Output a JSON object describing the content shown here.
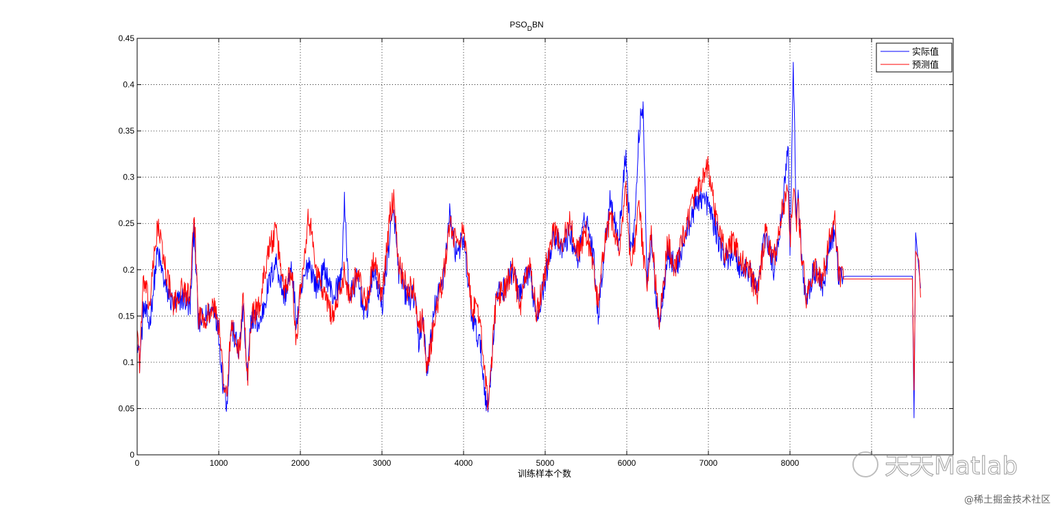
{
  "chart_data": {
    "type": "line",
    "title_main": "PSO",
    "title_sub": "D",
    "title_tail": "BN",
    "xlabel": "训练样本个数",
    "ylabel": "",
    "xlim": [
      0,
      10000
    ],
    "ylim": [
      0,
      0.45
    ],
    "xticks": [
      0,
      1000,
      2000,
      3000,
      4000,
      5000,
      6000,
      7000,
      8000,
      9000,
      10000
    ],
    "xtick_labels": [
      "0",
      "1000",
      "2000",
      "3000",
      "4000",
      "5000",
      "6000",
      "7000",
      "8000",
      "",
      ""
    ],
    "yticks": [
      0,
      0.05,
      0.1,
      0.15,
      0.2,
      0.25,
      0.3,
      0.35,
      0.4,
      0.45
    ],
    "ytick_labels": [
      "0",
      "0.05",
      "0.1",
      "0.15",
      "0.2",
      "0.25",
      "0.3",
      "0.35",
      "0.4",
      "0.45"
    ],
    "grid": true,
    "legend_position": "top-right",
    "series": [
      {
        "name": "实际值",
        "color": "#0000ff",
        "x": [
          0,
          30,
          80,
          150,
          250,
          350,
          450,
          550,
          650,
          700,
          750,
          850,
          950,
          1000,
          1050,
          1100,
          1150,
          1250,
          1300,
          1350,
          1400,
          1500,
          1600,
          1700,
          1800,
          1900,
          1950,
          2000,
          2100,
          2200,
          2300,
          2400,
          2500,
          2540,
          2600,
          2700,
          2800,
          2900,
          3000,
          3100,
          3150,
          3200,
          3300,
          3400,
          3450,
          3500,
          3550,
          3650,
          3750,
          3830,
          3900,
          4000,
          4100,
          4200,
          4260,
          4300,
          4400,
          4500,
          4600,
          4700,
          4800,
          4900,
          5000,
          5100,
          5200,
          5300,
          5400,
          5500,
          5600,
          5650,
          5700,
          5800,
          5900,
          5990,
          6050,
          6100,
          6150,
          6200,
          6250,
          6300,
          6350,
          6400,
          6500,
          6600,
          6700,
          6800,
          6900,
          7000,
          7100,
          7200,
          7300,
          7400,
          7500,
          7600,
          7700,
          7800,
          7900,
          7980,
          8000,
          8040,
          8080,
          8100,
          8150,
          8200,
          8300,
          8400,
          8500,
          8550,
          8600,
          8680,
          9500,
          9520,
          9540,
          9580,
          9600
        ],
        "y": [
          0.13,
          0.1,
          0.16,
          0.14,
          0.22,
          0.18,
          0.16,
          0.17,
          0.16,
          0.25,
          0.14,
          0.15,
          0.16,
          0.13,
          0.08,
          0.055,
          0.14,
          0.11,
          0.16,
          0.08,
          0.15,
          0.14,
          0.18,
          0.21,
          0.17,
          0.2,
          0.14,
          0.17,
          0.21,
          0.18,
          0.2,
          0.17,
          0.19,
          0.27,
          0.17,
          0.19,
          0.15,
          0.2,
          0.16,
          0.24,
          0.26,
          0.2,
          0.17,
          0.17,
          0.12,
          0.15,
          0.09,
          0.16,
          0.19,
          0.26,
          0.22,
          0.23,
          0.15,
          0.12,
          0.07,
          0.05,
          0.17,
          0.18,
          0.2,
          0.17,
          0.2,
          0.15,
          0.19,
          0.24,
          0.22,
          0.24,
          0.21,
          0.26,
          0.21,
          0.15,
          0.2,
          0.28,
          0.23,
          0.33,
          0.22,
          0.25,
          0.35,
          0.38,
          0.19,
          0.23,
          0.18,
          0.14,
          0.22,
          0.2,
          0.23,
          0.26,
          0.28,
          0.27,
          0.24,
          0.21,
          0.22,
          0.2,
          0.2,
          0.18,
          0.24,
          0.2,
          0.26,
          0.34,
          0.22,
          0.42,
          0.25,
          0.28,
          0.2,
          0.17,
          0.2,
          0.18,
          0.23,
          0.24,
          0.19,
          0.193,
          0.193,
          0.04,
          0.24,
          0.2,
          0.18
        ],
        "legend_label": "实际值"
      },
      {
        "name": "预测值",
        "color": "#ff0000",
        "x": [
          0,
          30,
          80,
          150,
          250,
          350,
          450,
          550,
          650,
          700,
          750,
          850,
          950,
          1000,
          1050,
          1100,
          1150,
          1250,
          1300,
          1350,
          1400,
          1500,
          1600,
          1700,
          1800,
          1900,
          1950,
          2000,
          2100,
          2200,
          2300,
          2400,
          2500,
          2540,
          2600,
          2700,
          2800,
          2900,
          3000,
          3100,
          3150,
          3200,
          3300,
          3400,
          3450,
          3500,
          3550,
          3650,
          3750,
          3830,
          3900,
          4000,
          4100,
          4200,
          4260,
          4300,
          4400,
          4500,
          4600,
          4700,
          4800,
          4900,
          5000,
          5100,
          5200,
          5300,
          5400,
          5500,
          5600,
          5650,
          5700,
          5800,
          5900,
          5990,
          6050,
          6100,
          6150,
          6200,
          6250,
          6300,
          6350,
          6400,
          6500,
          6600,
          6700,
          6800,
          6900,
          7000,
          7100,
          7200,
          7300,
          7400,
          7500,
          7600,
          7700,
          7800,
          7900,
          7980,
          8000,
          8040,
          8080,
          8100,
          8150,
          8200,
          8300,
          8400,
          8500,
          8550,
          8600,
          8680,
          9500,
          9520,
          9540,
          9580,
          9600
        ],
        "y": [
          0.14,
          0.1,
          0.19,
          0.16,
          0.25,
          0.2,
          0.16,
          0.18,
          0.17,
          0.26,
          0.15,
          0.15,
          0.16,
          0.14,
          0.09,
          0.06,
          0.14,
          0.11,
          0.17,
          0.08,
          0.15,
          0.16,
          0.22,
          0.24,
          0.18,
          0.2,
          0.12,
          0.18,
          0.26,
          0.2,
          0.17,
          0.15,
          0.18,
          0.2,
          0.17,
          0.2,
          0.16,
          0.21,
          0.17,
          0.26,
          0.28,
          0.21,
          0.18,
          0.18,
          0.14,
          0.15,
          0.09,
          0.15,
          0.19,
          0.25,
          0.23,
          0.24,
          0.16,
          0.15,
          0.09,
          0.05,
          0.17,
          0.18,
          0.2,
          0.16,
          0.21,
          0.15,
          0.2,
          0.24,
          0.23,
          0.25,
          0.22,
          0.24,
          0.2,
          0.16,
          0.21,
          0.26,
          0.22,
          0.29,
          0.2,
          0.23,
          0.27,
          0.22,
          0.18,
          0.24,
          0.19,
          0.14,
          0.23,
          0.2,
          0.24,
          0.27,
          0.29,
          0.31,
          0.25,
          0.22,
          0.23,
          0.21,
          0.2,
          0.17,
          0.24,
          0.21,
          0.26,
          0.29,
          0.23,
          0.29,
          0.25,
          0.27,
          0.21,
          0.17,
          0.2,
          0.19,
          0.24,
          0.25,
          0.19,
          0.19,
          0.19,
          0.07,
          0.22,
          0.21,
          0.17
        ],
        "legend_label": "预测值"
      }
    ]
  },
  "watermark": {
    "brand": "天天Matlab",
    "community": "@稀土掘金技术社区"
  }
}
